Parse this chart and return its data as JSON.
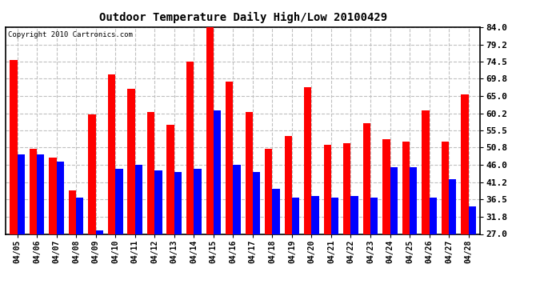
{
  "title": "Outdoor Temperature Daily High/Low 20100429",
  "copyright": "Copyright 2010 Cartronics.com",
  "dates": [
    "04/05",
    "04/06",
    "04/07",
    "04/08",
    "04/09",
    "04/10",
    "04/11",
    "04/12",
    "04/13",
    "04/14",
    "04/15",
    "04/16",
    "04/17",
    "04/18",
    "04/19",
    "04/20",
    "04/21",
    "04/22",
    "04/23",
    "04/24",
    "04/25",
    "04/26",
    "04/27",
    "04/28"
  ],
  "highs": [
    75.0,
    50.5,
    48.0,
    39.0,
    60.0,
    71.0,
    67.0,
    60.5,
    57.0,
    74.5,
    84.0,
    69.0,
    60.5,
    50.5,
    54.0,
    67.5,
    51.5,
    52.0,
    57.5,
    53.0,
    52.5,
    61.0,
    52.5,
    65.5
  ],
  "lows": [
    49.0,
    49.0,
    47.0,
    37.0,
    28.0,
    45.0,
    46.0,
    44.5,
    44.0,
    45.0,
    61.0,
    46.0,
    44.0,
    39.5,
    37.0,
    37.5,
    37.0,
    37.5,
    37.0,
    45.5,
    45.5,
    37.0,
    42.0,
    34.5
  ],
  "high_color": "#ff0000",
  "low_color": "#0000ff",
  "bg_color": "#ffffff",
  "grid_color": "#c0c0c0",
  "yticks": [
    27.0,
    31.8,
    36.5,
    41.2,
    46.0,
    50.8,
    55.5,
    60.2,
    65.0,
    69.8,
    74.5,
    79.2,
    84.0
  ],
  "ymin": 27.0,
  "ymax": 84.0,
  "bar_width": 0.38
}
